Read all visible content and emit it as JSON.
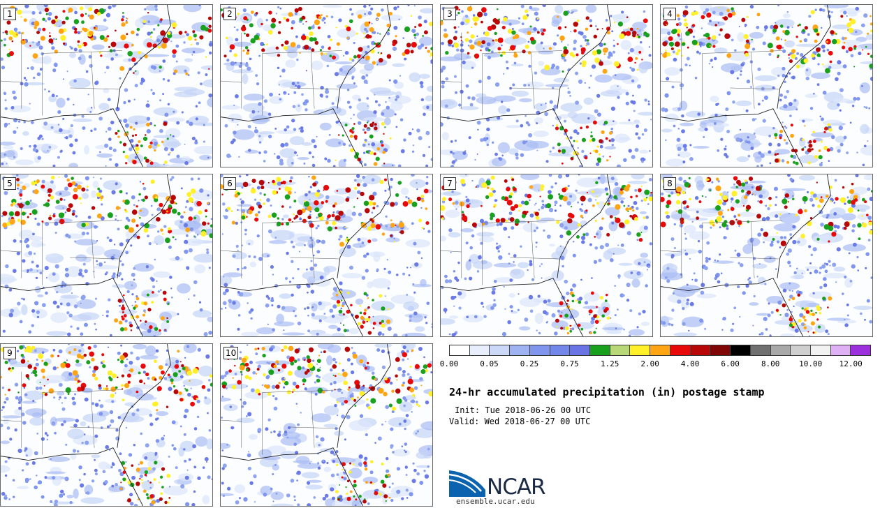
{
  "panels": [
    {
      "label": "1"
    },
    {
      "label": "2"
    },
    {
      "label": "3"
    },
    {
      "label": "4"
    },
    {
      "label": "5"
    },
    {
      "label": "6"
    },
    {
      "label": "7"
    },
    {
      "label": "8"
    },
    {
      "label": "9"
    },
    {
      "label": "10"
    }
  ],
  "colorbar": {
    "colors": [
      "#ffffff",
      "#e8eefc",
      "#cbd8f8",
      "#9fb3f2",
      "#8096ee",
      "#7386ea",
      "#6a74e4",
      "#19a11e",
      "#b8d878",
      "#fff02a",
      "#ffa514",
      "#e80a0a",
      "#b70707",
      "#800505",
      "#000000",
      "#707070",
      "#a8a8a8",
      "#cfcfcf",
      "#f2f2f2",
      "#e0b0f4",
      "#9b30dc"
    ],
    "ticks": [
      "0.00",
      "0.05",
      "0.25",
      "0.75",
      "1.25",
      "2.00",
      "4.00",
      "6.00",
      "8.00",
      "10.00",
      "12.00"
    ]
  },
  "title": "24-hr accumulated precipitation (in) postage stamp",
  "init": "Init: Tue 2018-06-26 00 UTC",
  "valid": "Valid: Wed 2018-06-27 00 UTC",
  "logo": {
    "name": "NCAR",
    "site": "ensemble.ucar.edu"
  }
}
